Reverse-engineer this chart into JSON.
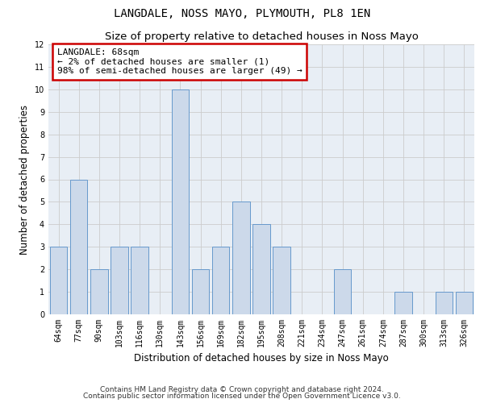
{
  "title": "LANGDALE, NOSS MAYO, PLYMOUTH, PL8 1EN",
  "subtitle": "Size of property relative to detached houses in Noss Mayo",
  "xlabel": "Distribution of detached houses by size in Noss Mayo",
  "ylabel": "Number of detached properties",
  "categories": [
    "64sqm",
    "77sqm",
    "90sqm",
    "103sqm",
    "116sqm",
    "130sqm",
    "143sqm",
    "156sqm",
    "169sqm",
    "182sqm",
    "195sqm",
    "208sqm",
    "221sqm",
    "234sqm",
    "247sqm",
    "261sqm",
    "274sqm",
    "287sqm",
    "300sqm",
    "313sqm",
    "326sqm"
  ],
  "values": [
    3,
    6,
    2,
    3,
    3,
    0,
    10,
    2,
    3,
    5,
    4,
    3,
    0,
    0,
    2,
    0,
    0,
    1,
    0,
    1,
    1
  ],
  "bar_color": "#ccd9ea",
  "bar_edge_color": "#6699cc",
  "annotation_text": "LANGDALE: 68sqm\n← 2% of detached houses are smaller (1)\n98% of semi-detached houses are larger (49) →",
  "annotation_box_color": "#ffffff",
  "annotation_box_edge_color": "#cc0000",
  "ylim": [
    0,
    12
  ],
  "yticks": [
    0,
    1,
    2,
    3,
    4,
    5,
    6,
    7,
    8,
    9,
    10,
    11,
    12
  ],
  "grid_color": "#cccccc",
  "background_color": "#e8eef5",
  "footer_line1": "Contains HM Land Registry data © Crown copyright and database right 2024.",
  "footer_line2": "Contains public sector information licensed under the Open Government Licence v3.0.",
  "title_fontsize": 10,
  "subtitle_fontsize": 9.5,
  "axis_label_fontsize": 8.5,
  "tick_fontsize": 7,
  "footer_fontsize": 6.5,
  "annotation_fontsize": 8
}
